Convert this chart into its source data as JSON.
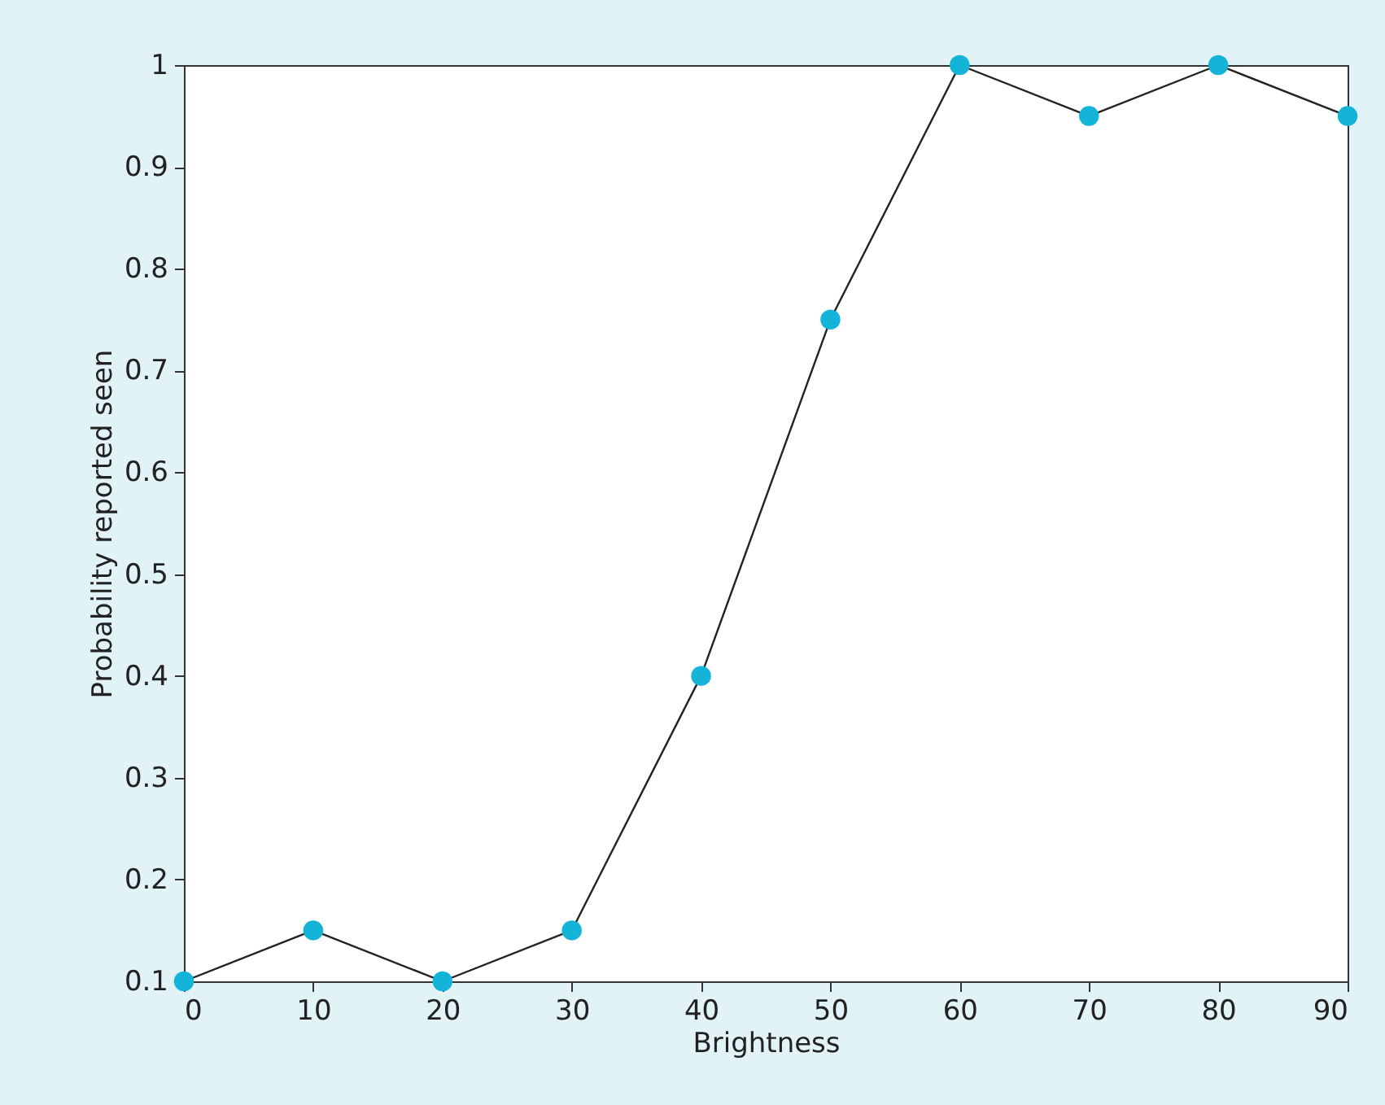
{
  "chart_data": {
    "type": "line",
    "xlabel": "Brightness",
    "ylabel": "Probability reported seen",
    "x": [
      0,
      10,
      20,
      30,
      40,
      50,
      60,
      70,
      80,
      90
    ],
    "series": [
      {
        "color": "#14b4d8",
        "values": [
          0.1,
          0.15,
          0.1,
          0.15,
          0.4,
          0.75,
          1,
          0.95,
          1,
          0.95
        ]
      }
    ],
    "xlim": [
      0,
      90
    ],
    "xticks": [
      0,
      10,
      20,
      30,
      40,
      50,
      60,
      70,
      80,
      90
    ],
    "ylim": [
      0.1,
      1
    ],
    "yticks": [
      0.1,
      0.2,
      0.3,
      0.4,
      0.5,
      0.6,
      0.7,
      0.8,
      0.9,
      1
    ],
    "grid": false,
    "marker": "circle",
    "line_style": "solid"
  }
}
